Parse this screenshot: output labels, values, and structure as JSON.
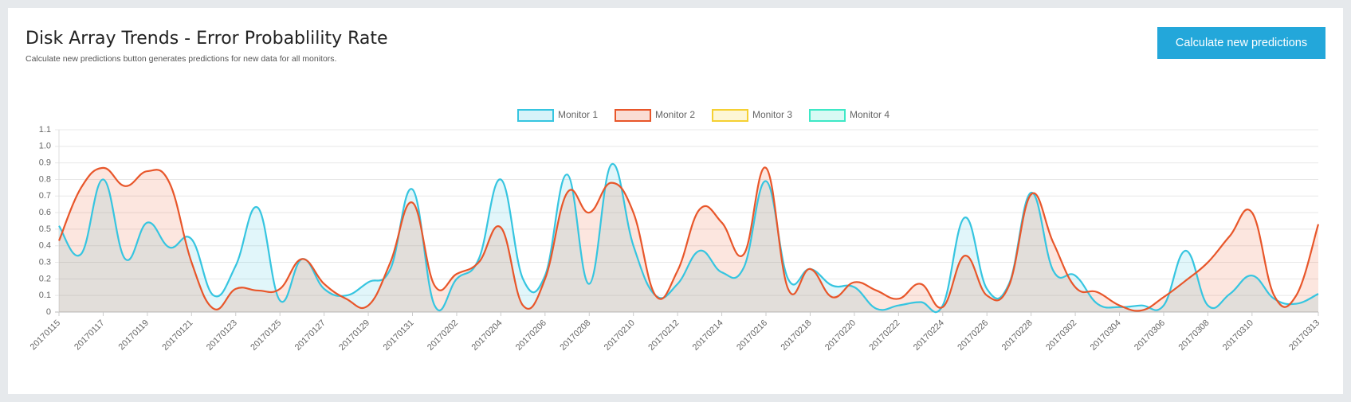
{
  "header": {
    "title": "Disk Array Trends - Error Probablility Rate",
    "subtitle": "Calculate new predictions button generates predictions for new data for all monitors."
  },
  "button": {
    "label": "Calculate new predictions"
  },
  "chart_data": {
    "type": "line",
    "categories": [
      "20170115",
      null,
      "20170117",
      null,
      "20170119",
      null,
      "20170121",
      null,
      "20170123",
      null,
      "20170125",
      null,
      "20170127",
      null,
      "20170129",
      null,
      "20170131",
      null,
      "20170202",
      null,
      "20170204",
      null,
      "20170206",
      null,
      "20170208",
      null,
      "20170210",
      null,
      "20170212",
      null,
      "20170214",
      null,
      "20170216",
      null,
      "20170218",
      null,
      "20170220",
      null,
      "20170222",
      null,
      "20170224",
      null,
      "20170226",
      null,
      "20170228",
      null,
      "20170302",
      null,
      "20170304",
      null,
      "20170306",
      null,
      "20170308",
      null,
      "20170310",
      null,
      null,
      "20170313"
    ],
    "series": [
      {
        "name": "Monitor 1",
        "color": "#36c5e0",
        "values": [
          0.52,
          0.35,
          0.8,
          0.32,
          0.54,
          0.39,
          0.44,
          0.1,
          0.28,
          0.63,
          0.07,
          0.32,
          0.14,
          0.1,
          0.18,
          0.26,
          0.74,
          0.04,
          0.2,
          0.32,
          0.8,
          0.2,
          0.22,
          0.83,
          0.17,
          0.89,
          0.4,
          0.1,
          0.17,
          0.37,
          0.24,
          0.27,
          0.79,
          0.2,
          0.26,
          0.16,
          0.15,
          0.02,
          0.04,
          0.06,
          0.04,
          0.57,
          0.14,
          0.17,
          0.72,
          0.25,
          0.22,
          0.05,
          0.03,
          0.04,
          0.04,
          0.37,
          0.04,
          0.11,
          0.22,
          0.08,
          0.05,
          0.11
        ]
      },
      {
        "name": "Monitor 2",
        "color": "#e8562a",
        "values": [
          0.43,
          0.75,
          0.87,
          0.76,
          0.85,
          0.78,
          0.3,
          0.02,
          0.14,
          0.13,
          0.14,
          0.32,
          0.17,
          0.08,
          0.04,
          0.3,
          0.66,
          0.16,
          0.23,
          0.3,
          0.51,
          0.04,
          0.2,
          0.72,
          0.6,
          0.78,
          0.6,
          0.1,
          0.25,
          0.62,
          0.54,
          0.35,
          0.87,
          0.14,
          0.26,
          0.09,
          0.18,
          0.13,
          0.08,
          0.17,
          0.03,
          0.34,
          0.1,
          0.16,
          0.71,
          0.42,
          0.15,
          0.12,
          0.04,
          0.01,
          0.09,
          0.19,
          0.3,
          0.46,
          0.6,
          0.1,
          0.1,
          0.53
        ]
      },
      {
        "name": "Monitor 3",
        "color": "#f5d033",
        "values": [
          null,
          null,
          null,
          null,
          null,
          null,
          null,
          null,
          null,
          null,
          null,
          null,
          null,
          null,
          null,
          null,
          null,
          null,
          null,
          null,
          null,
          null,
          null,
          null,
          null,
          null,
          null,
          null,
          null,
          null,
          null,
          null,
          null,
          null,
          null,
          null,
          null,
          null,
          null,
          null,
          null,
          null,
          null,
          null,
          null,
          null,
          null,
          null,
          null,
          null,
          null,
          null,
          null,
          null,
          null,
          null,
          null,
          null
        ]
      },
      {
        "name": "Monitor 4",
        "color": "#3ee8c6",
        "values": [
          null,
          null,
          null,
          null,
          null,
          null,
          null,
          null,
          null,
          null,
          null,
          null,
          null,
          null,
          null,
          null,
          null,
          null,
          null,
          null,
          null,
          null,
          null,
          null,
          null,
          null,
          null,
          null,
          null,
          null,
          null,
          null,
          null,
          null,
          null,
          null,
          null,
          null,
          null,
          null,
          null,
          null,
          null,
          null,
          null,
          null,
          null,
          null,
          null,
          null,
          null,
          null,
          null,
          null,
          null,
          null,
          null,
          null
        ]
      }
    ],
    "ylim": [
      0,
      1.1
    ],
    "yticks": [
      0,
      0.1,
      0.2,
      0.3,
      0.4,
      0.5,
      0.6,
      0.7,
      0.8,
      0.9,
      {
        "value": 1,
        "label": "1.0"
      },
      1.1
    ],
    "grid": true,
    "legend": "top"
  }
}
